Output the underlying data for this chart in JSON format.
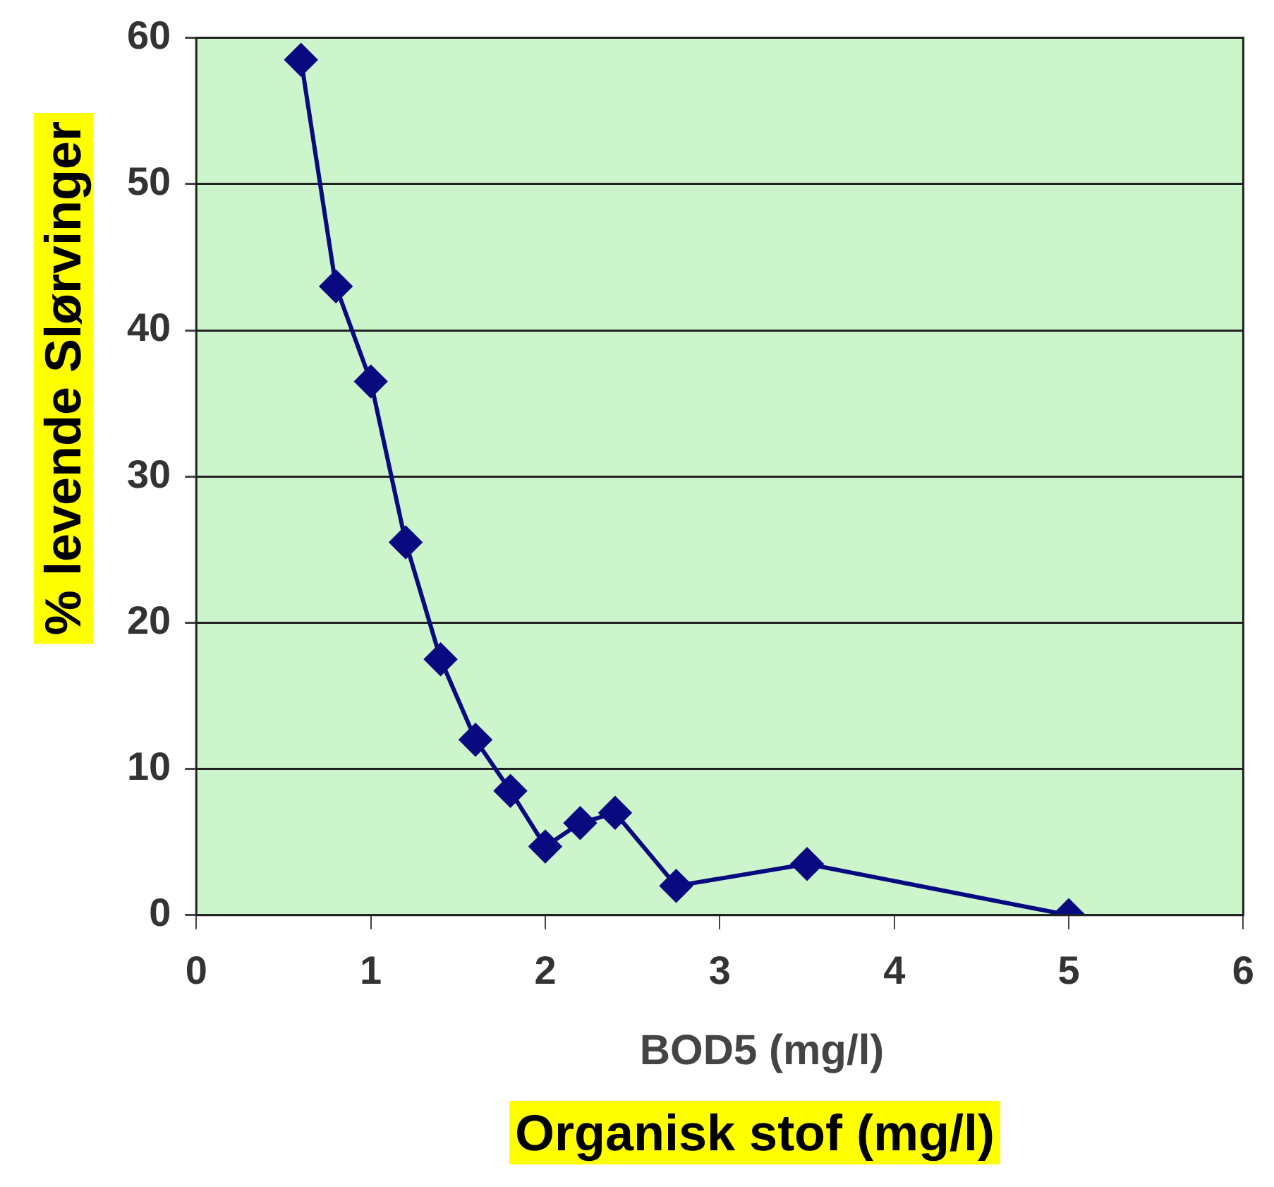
{
  "chart_data": {
    "type": "line",
    "xlabel": "BOD5 (mg/l)",
    "ylabel": "% levende Slørvinger",
    "annotations": [
      "Organisk stof (mg/l)"
    ],
    "x": [
      0.6,
      0.8,
      1.0,
      1.2,
      1.4,
      1.6,
      1.8,
      2.0,
      2.2,
      2.4,
      2.75,
      3.5,
      5
    ],
    "series": [
      {
        "color": "#0a0a80",
        "values": [
          58.5,
          43,
          36.5,
          25.5,
          17.5,
          12,
          8.5,
          4.7,
          6.3,
          7,
          2,
          3.5,
          0
        ]
      }
    ],
    "xlim": [
      0,
      6
    ],
    "xticks": [
      0,
      1,
      2,
      3,
      4,
      5,
      6
    ],
    "ylim": [
      0,
      60
    ],
    "yticks": [
      0,
      10,
      20,
      30,
      40,
      50,
      60
    ],
    "grid": "y",
    "marker": "diamond",
    "line_style": "solid",
    "legend": false
  }
}
